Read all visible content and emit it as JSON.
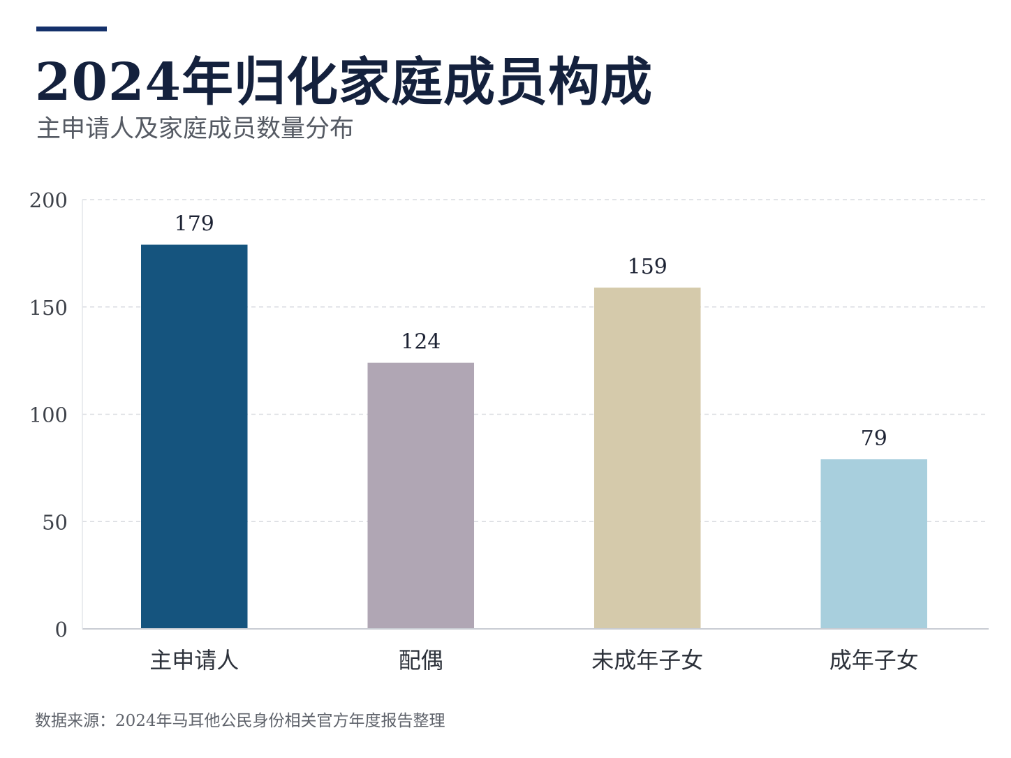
{
  "header": {
    "title": "2024年归化家庭成员构成",
    "subtitle": "主申请人及家庭成员数量分布"
  },
  "footer": {
    "source": "数据来源：2024年马耳他公民身份相关官方年度报告整理"
  },
  "chart_data": {
    "type": "bar",
    "title": "2024年归化家庭成员构成",
    "subtitle": "主申请人及家庭成员数量分布",
    "categories": [
      "主申请人",
      "配偶",
      "未成年子女",
      "成年子女"
    ],
    "values": [
      179,
      124,
      159,
      79
    ],
    "data_labels": [
      "179",
      "124",
      "159",
      "79"
    ],
    "colors": [
      "#15547e",
      "#b0a6b4",
      "#d5caab",
      "#a8cfdd"
    ],
    "ylim": [
      0,
      200
    ],
    "yticks": [
      0,
      50,
      100,
      150,
      200
    ],
    "ytick_labels": [
      "0",
      "50",
      "100",
      "150",
      "200"
    ],
    "xlabel": "",
    "ylabel": "",
    "grid": true,
    "grid_style": "dashed",
    "legend": "none"
  }
}
